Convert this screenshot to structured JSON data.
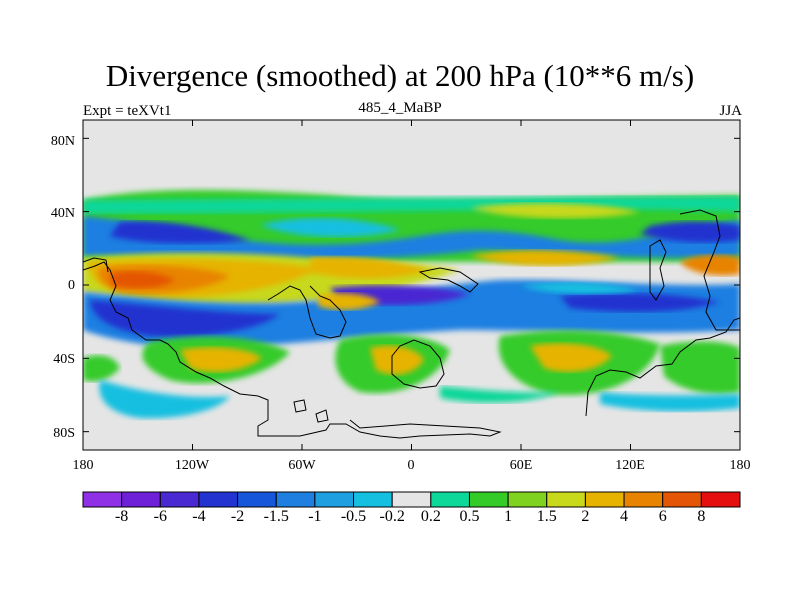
{
  "map": {
    "title": "Divergence (smoothed) at 200 hPa (10**6 m/s)",
    "experiment_label": "Expt = teXVt1",
    "subtitle": "485_4_MaBP",
    "season": "JJA",
    "projection": "cylindrical-equidistant",
    "lon_range": [
      -180,
      180
    ],
    "lat_range": [
      -90,
      90
    ],
    "y_tick_labels": [
      "80N",
      "40N",
      "0",
      "40S",
      "80S"
    ],
    "x_tick_labels": [
      "180",
      "120W",
      "60W",
      "0",
      "60E",
      "120E",
      "180"
    ],
    "coastlines": "paleogeography outline",
    "missing_color": "#e5e5e5"
  },
  "colorbar": {
    "labels": [
      "-8",
      "-6",
      "-4",
      "-2",
      "-1.5",
      "-1",
      "-0.5",
      "-0.2",
      "0.2",
      "0.5",
      "1",
      "1.5",
      "2",
      "4",
      "6",
      "8"
    ],
    "colors": [
      "#8f2fe6",
      "#6e20d8",
      "#4a28d2",
      "#2233cf",
      "#1656da",
      "#1e7fe1",
      "#1e9fe0",
      "#14bfe0",
      "#e5e5e5",
      "#0ed79a",
      "#34cb29",
      "#7fd21f",
      "#c8d81b",
      "#e6b300",
      "#e88300",
      "#e45505",
      "#e60f0f"
    ]
  }
}
